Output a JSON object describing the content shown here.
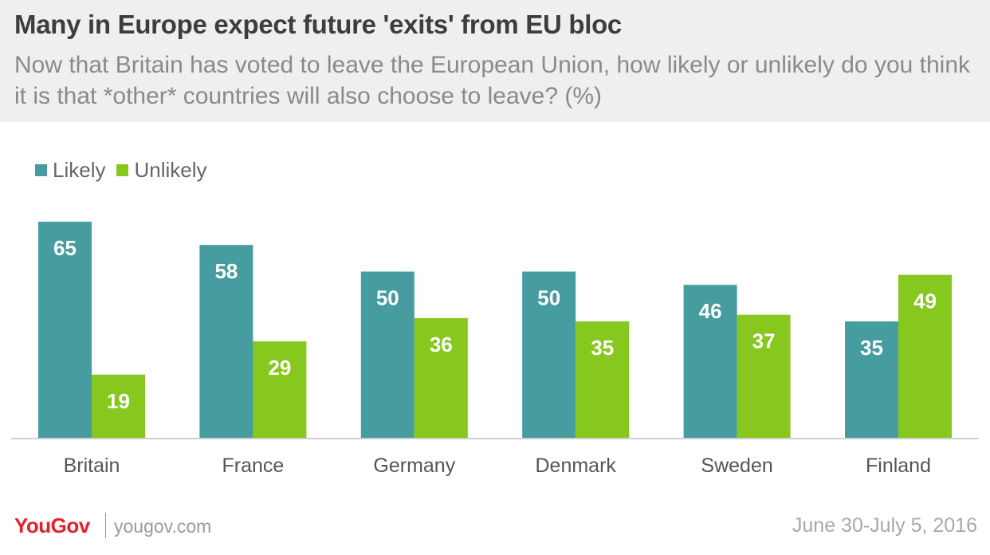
{
  "header": {
    "title": "Many in Europe expect future 'exits' from EU bloc",
    "subtitle": "Now that Britain has voted to leave the European Union, how likely or unlikely do you think it is that *other* countries will also choose to leave? (%)"
  },
  "colors": {
    "likely": "#479c9f",
    "unlikely": "#87c81f",
    "axis": "#cfcfcf",
    "label_text": "#ffffff",
    "category_text": "#555555"
  },
  "chart_data": {
    "type": "bar",
    "title": "Many in Europe expect future 'exits' from EU bloc",
    "subtitle": "Now that Britain has voted to leave the European Union, how likely or unlikely do you think it is that *other* countries will also choose to leave? (%)",
    "categories": [
      "Britain",
      "France",
      "Germany",
      "Denmark",
      "Sweden",
      "Finland"
    ],
    "series": [
      {
        "name": "Likely",
        "color": "#479c9f",
        "values": [
          65,
          58,
          50,
          50,
          46,
          35
        ]
      },
      {
        "name": "Unlikely",
        "color": "#87c81f",
        "values": [
          19,
          29,
          36,
          35,
          37,
          49
        ]
      }
    ],
    "xlabel": "",
    "ylabel": "",
    "ylim": [
      0,
      65
    ],
    "grid": false,
    "legend": "top-left"
  },
  "footer": {
    "logo": "YouGov",
    "site": "yougov.com",
    "date": "June 30-July 5, 2016"
  }
}
